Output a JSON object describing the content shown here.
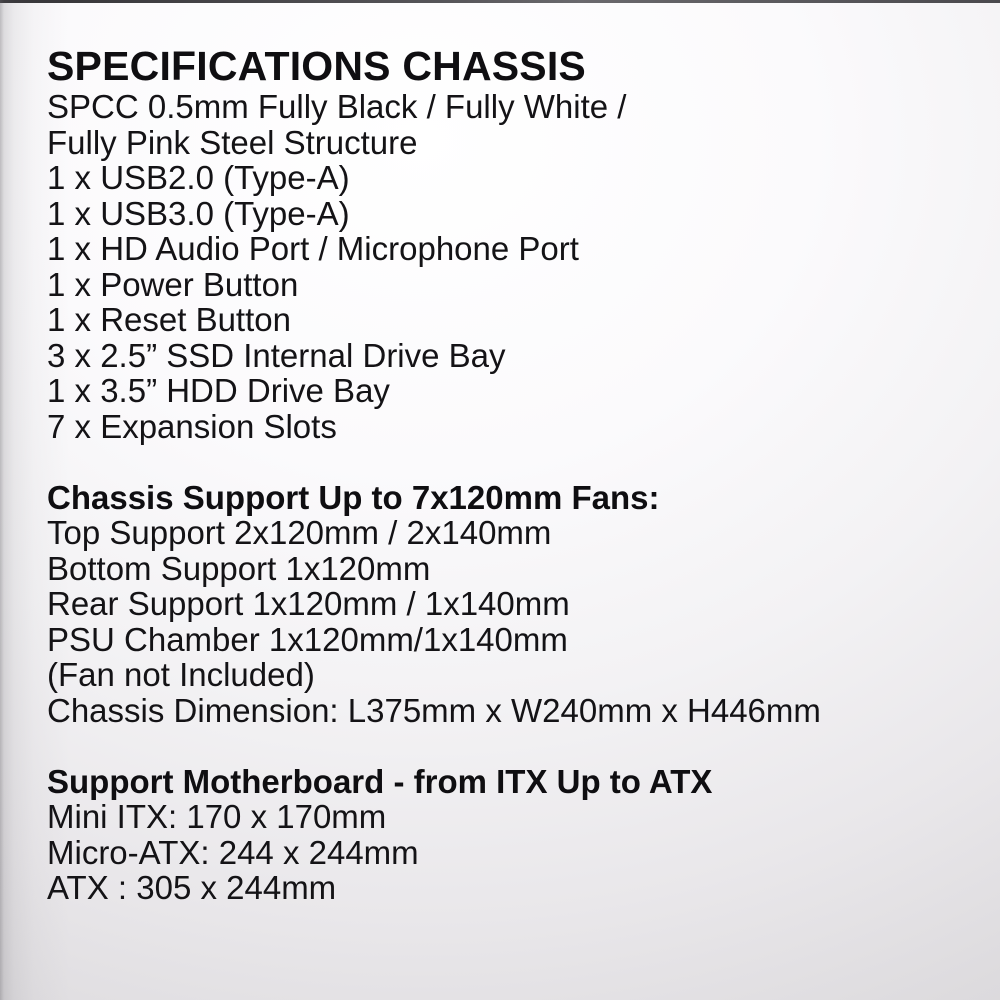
{
  "title": "SPECIFICATIONS CHASSIS",
  "sections": [
    {
      "heading": null,
      "lines": [
        "SPCC 0.5mm Fully Black / Fully White /",
        "Fully Pink Steel Structure",
        "1 x USB2.0 (Type-A)",
        "1 x USB3.0 (Type-A)",
        "1 x HD Audio Port / Microphone Port",
        "1 x Power Button",
        "1 x Reset Button",
        "3 x 2.5” SSD Internal Drive Bay",
        "1 x 3.5” HDD Drive Bay",
        "7 x Expansion Slots"
      ]
    },
    {
      "heading": "Chassis Support Up to 7x120mm Fans:",
      "lines": [
        "Top Support 2x120mm / 2x140mm",
        "Bottom Support 1x120mm",
        "Rear Support 1x120mm / 1x140mm",
        "PSU Chamber 1x120mm/1x140mm",
        "(Fan not Included)",
        "Chassis Dimension: L375mm x W240mm x H446mm"
      ]
    },
    {
      "heading": "Support Motherboard - from ITX Up to ATX",
      "lines": [
        "Mini ITX: 170 x 170mm",
        "Micro-ATX: 244 x 244mm",
        "ATX : 305 x 244mm"
      ]
    }
  ],
  "colors": {
    "text": "#141316",
    "background_highlight": "#ffffff",
    "background_edge": "#d4d2d5",
    "top_border": "#4a494d"
  }
}
